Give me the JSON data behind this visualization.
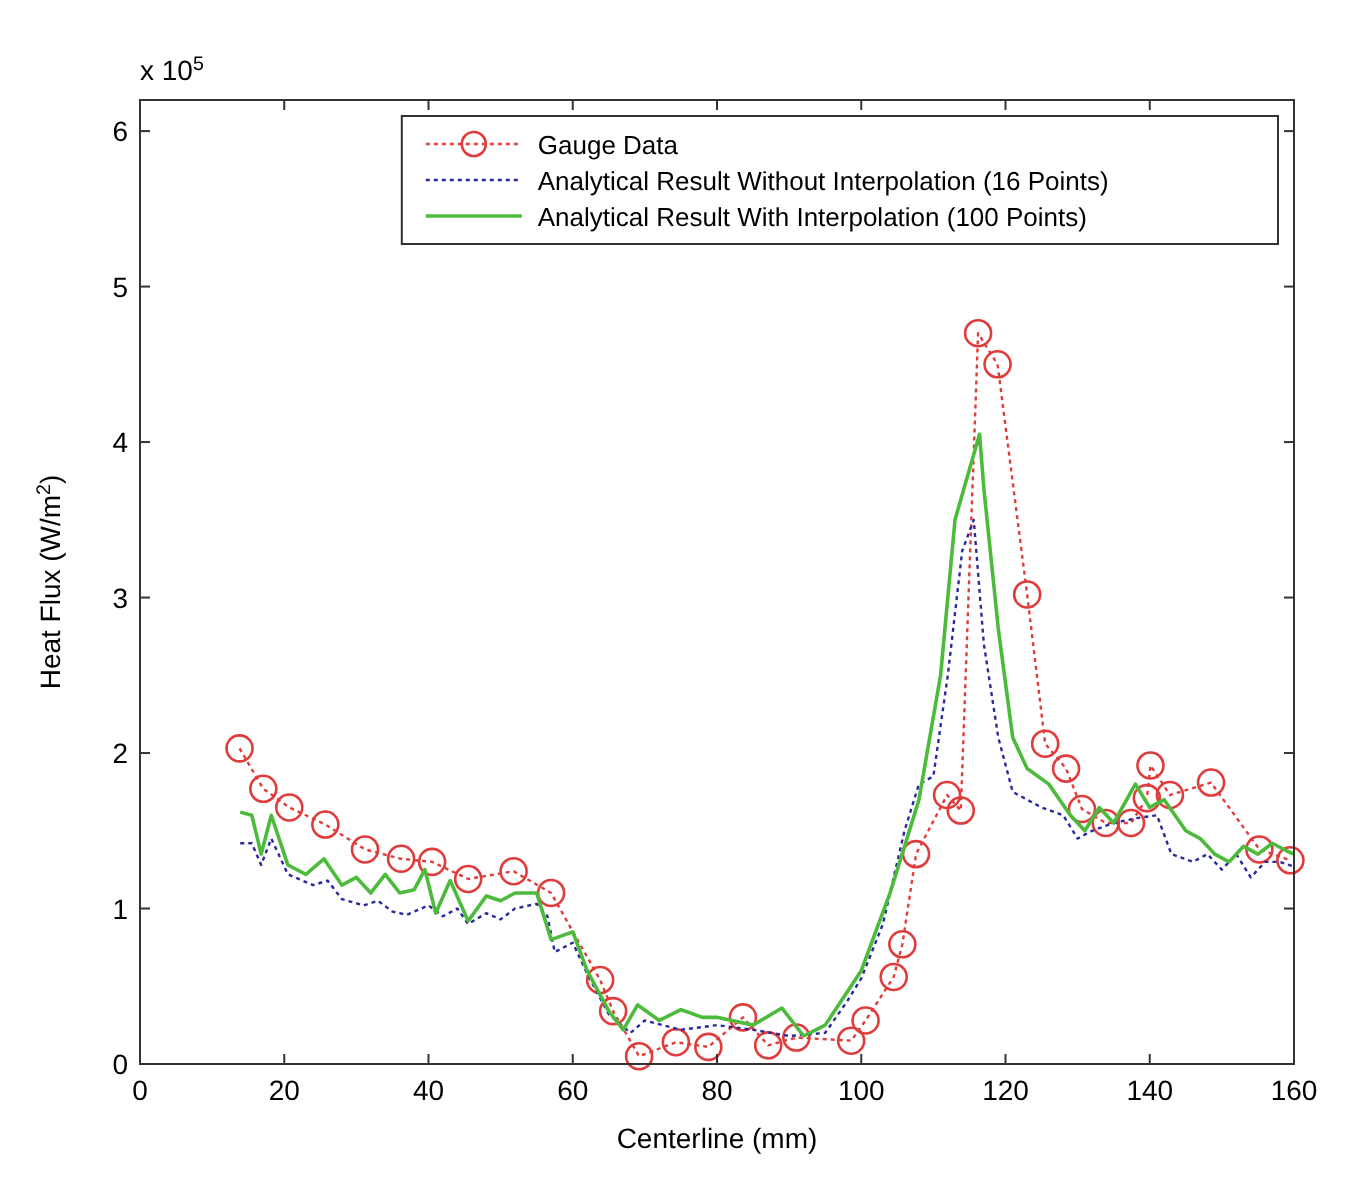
{
  "chart_data": {
    "type": "line",
    "xlabel": "Centerline (mm)",
    "ylabel": "Heat Flux (W/m$^{2}$)",
    "annotations": [
      "x 10$^{5}$"
    ],
    "xlim": [
      0,
      160
    ],
    "xticks": [
      0,
      20,
      40,
      60,
      80,
      100,
      120,
      140,
      160
    ],
    "ylim": [
      0,
      6.2
    ],
    "yticks": [
      0,
      1,
      2,
      3,
      4,
      5,
      6
    ],
    "grid": false,
    "legend": "top right",
    "series": [
      {
        "name": "Gauge Data",
        "color": "#e03c3c",
        "marker": "circle",
        "line_style": "dotted",
        "x": [
          13.8,
          17.1,
          20.7,
          25.7,
          31.2,
          36.2,
          40.5,
          45.5,
          51.8,
          57,
          63.8,
          65.6,
          69.2,
          74.3,
          78.8,
          83.6,
          87.1,
          91,
          98.6,
          100.6,
          104.5,
          105.7,
          107.6,
          111.9,
          113.8,
          116.2,
          118.9,
          123,
          125.5,
          128.4,
          130.6,
          133.9,
          137.4,
          139.6,
          140.1,
          142.8,
          148.5,
          155.2,
          159.5
        ],
        "values": [
          2.03,
          1.77,
          1.65,
          1.54,
          1.38,
          1.32,
          1.3,
          1.19,
          1.24,
          1.1,
          0.54,
          0.34,
          0.05,
          0.14,
          0.11,
          0.3,
          0.12,
          0.17,
          0.15,
          0.28,
          0.56,
          0.77,
          1.35,
          1.73,
          1.63,
          4.7,
          4.5,
          3.02,
          2.06,
          1.9,
          1.64,
          1.55,
          1.55,
          1.71,
          1.92,
          1.73,
          1.81,
          1.38,
          1.31
        ]
      },
      {
        "name": "Analytical Result Without Interpolation (16 Points)",
        "color": "#2a2a9c",
        "marker": "none",
        "line_style": "dotted",
        "x": [
          13.9,
          15.5,
          16.8,
          18.2,
          20.5,
          24,
          26,
          28,
          31,
          33,
          35,
          37,
          40,
          42,
          44,
          45.5,
          48,
          50,
          52,
          55,
          56.5,
          57.5,
          60,
          62,
          65,
          68,
          70,
          75,
          80,
          85,
          90,
          95,
          98,
          100,
          103,
          106,
          108,
          110,
          112,
          114,
          115.6,
          117,
          119,
          121,
          123,
          125,
          128,
          130,
          132,
          135,
          138,
          141,
          143,
          146,
          148,
          150,
          152,
          154,
          156,
          158,
          160
        ],
        "values": [
          1.42,
          1.42,
          1.28,
          1.45,
          1.22,
          1.15,
          1.18,
          1.06,
          1.02,
          1.05,
          0.98,
          0.96,
          1.02,
          0.95,
          1,
          0.9,
          0.97,
          0.93,
          1,
          1.03,
          0.95,
          0.72,
          0.78,
          0.58,
          0.32,
          0.2,
          0.28,
          0.22,
          0.25,
          0.22,
          0.18,
          0.2,
          0.4,
          0.55,
          0.9,
          1.5,
          1.8,
          1.85,
          2.5,
          3.3,
          3.5,
          2.7,
          2.1,
          1.75,
          1.7,
          1.65,
          1.6,
          1.45,
          1.5,
          1.55,
          1.58,
          1.6,
          1.35,
          1.3,
          1.35,
          1.25,
          1.35,
          1.2,
          1.3,
          1.3,
          1.27
        ]
      },
      {
        "name": "Analytical Result With Interpolation (100 Points)",
        "color": "#4cbb3c",
        "marker": "none",
        "line_style": "solid",
        "x": [
          13.9,
          15.5,
          16.8,
          18.2,
          20.5,
          23,
          25.5,
          28,
          30,
          32,
          34,
          36,
          38,
          39.5,
          41,
          43,
          45.5,
          48,
          50,
          52,
          55,
          57,
          60,
          62,
          65,
          67,
          69,
          72,
          75,
          78,
          80,
          85,
          89,
          92,
          95,
          100,
          104,
          108,
          111,
          113,
          116.4,
          117,
          119,
          121,
          123,
          126,
          129,
          131,
          133,
          135,
          138,
          140,
          142,
          145,
          147,
          149,
          151,
          153,
          155,
          157,
          159,
          160
        ],
        "values": [
          1.62,
          1.6,
          1.35,
          1.6,
          1.28,
          1.22,
          1.32,
          1.15,
          1.2,
          1.1,
          1.22,
          1.1,
          1.12,
          1.25,
          0.97,
          1.18,
          0.92,
          1.08,
          1.05,
          1.1,
          1.1,
          0.8,
          0.85,
          0.6,
          0.34,
          0.22,
          0.38,
          0.28,
          0.35,
          0.3,
          0.3,
          0.25,
          0.36,
          0.18,
          0.25,
          0.6,
          1.1,
          1.7,
          2.5,
          3.5,
          4.05,
          3.7,
          2.8,
          2.1,
          1.9,
          1.8,
          1.6,
          1.5,
          1.65,
          1.55,
          1.8,
          1.65,
          1.7,
          1.5,
          1.45,
          1.35,
          1.3,
          1.4,
          1.35,
          1.42,
          1.37,
          1.35
        ]
      }
    ]
  }
}
